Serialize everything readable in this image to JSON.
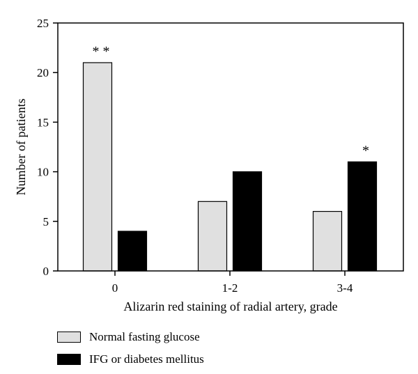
{
  "chart_data": {
    "type": "bar",
    "categories": [
      "0",
      "1-2",
      "3-4"
    ],
    "series": [
      {
        "name": "Normal fasting glucose",
        "values": [
          21,
          7,
          6
        ],
        "color": "#e0e0e0"
      },
      {
        "name": "IFG or diabetes mellitus",
        "values": [
          4,
          10,
          11
        ],
        "color": "#000000"
      }
    ],
    "xlabel": "Alizarin red staining of radial artery, grade",
    "ylabel": "Number of patients",
    "ylim": [
      0,
      25
    ],
    "yticks": [
      "0",
      "5",
      "10",
      "15",
      "20",
      "25"
    ],
    "annotations": [
      {
        "category": "0",
        "series": 0,
        "text": "* *"
      },
      {
        "category": "3-4",
        "series": 1,
        "text": "*"
      }
    ],
    "grid": false,
    "legend_position": "bottom-left"
  }
}
